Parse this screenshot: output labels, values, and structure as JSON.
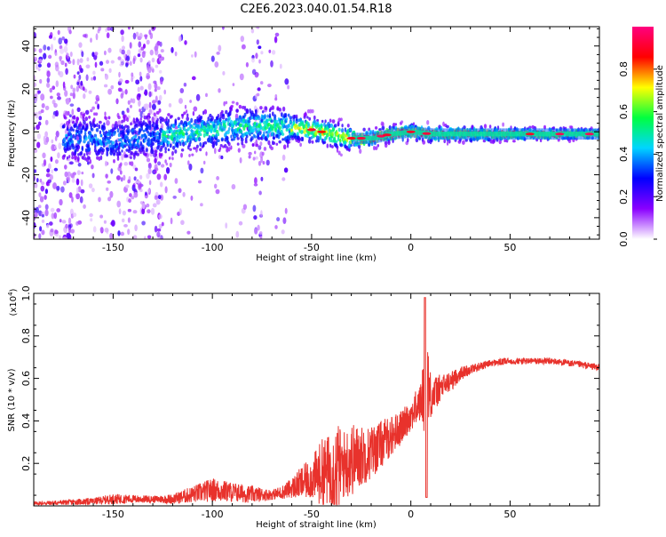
{
  "title": "C2E6.2023.040.01.54.R18",
  "colors": {
    "snr_line": "#e8322c",
    "axis": "#000000"
  },
  "chart_data": [
    {
      "type": "heatmap",
      "title": "C2E6.2023.040.01.54.R18",
      "xlabel": "Height of straight line (km)",
      "ylabel": "Frequency (Hz)",
      "xlim": [
        -190,
        95
      ],
      "ylim": [
        -50,
        49
      ],
      "xticks": [
        -150,
        -100,
        -50,
        0,
        50
      ],
      "yticks": [
        -40,
        -20,
        0,
        20,
        40
      ],
      "colorbar": {
        "label": "Normalized spectral amplitude",
        "range": [
          0,
          1
        ],
        "ticks": [
          "0.0",
          "0.2",
          "0.4",
          "0.6",
          "0.8"
        ],
        "tick_values": [
          0,
          0.2,
          0.4,
          0.6,
          0.8
        ],
        "colors": [
          "#ffffff",
          "#8a00ff",
          "#0000ff",
          "#00d5ff",
          "#00ff40",
          "#ffff00",
          "#ff0000",
          "#ff007f"
        ]
      },
      "ridge": {
        "x": [
          -170,
          -150,
          -125,
          -100,
          -80,
          -60,
          -50,
          -40,
          -30,
          -20,
          -10,
          0,
          10,
          20,
          40,
          60,
          95
        ],
        "y": [
          -3,
          -4,
          -2,
          1,
          3,
          2,
          1,
          -1,
          -3,
          -3,
          -1,
          0,
          -1,
          -1,
          -1,
          -1,
          -1
        ]
      }
    },
    {
      "type": "line",
      "xlabel": "Height of straight line (km)",
      "ylabel": "SNR (10 * v/v)",
      "scale_label": "(x10",
      "scale_exp": "4",
      "scale_close": ")",
      "xlim": [
        -190,
        95
      ],
      "ylim": [
        0,
        1.0
      ],
      "xticks": [
        -150,
        -100,
        -50,
        0,
        50
      ],
      "yticks": [
        "0.2",
        "0.4",
        "0.6",
        "0.8",
        "1.0"
      ],
      "ytick_values": [
        0.2,
        0.4,
        0.6,
        0.8,
        1.0
      ],
      "series": [
        {
          "values_envelope": {
            "x": [
              -190,
              -160,
              -150,
              -130,
              -120,
              -110,
              -100,
              -90,
              -80,
              -70,
              -65,
              -60,
              -55,
              -50,
              -45,
              -40,
              -37,
              -35,
              -30,
              -25,
              -20,
              -15,
              -10,
              -5,
              0,
              5,
              7,
              8,
              10,
              15,
              20,
              25,
              30,
              40,
              50,
              60,
              70,
              80,
              95
            ],
            "base": [
              0.01,
              0.02,
              0.03,
              0.03,
              0.03,
              0.05,
              0.07,
              0.06,
              0.05,
              0.05,
              0.06,
              0.08,
              0.1,
              0.12,
              0.14,
              0.15,
              0.15,
              0.17,
              0.2,
              0.22,
              0.24,
              0.28,
              0.32,
              0.36,
              0.42,
              0.48,
              0.52,
              0.55,
              0.5,
              0.55,
              0.58,
              0.62,
              0.64,
              0.67,
              0.68,
              0.68,
              0.68,
              0.67,
              0.65
            ],
            "amp": [
              0.01,
              0.02,
              0.03,
              0.02,
              0.03,
              0.05,
              0.07,
              0.06,
              0.05,
              0.03,
              0.04,
              0.06,
              0.1,
              0.12,
              0.2,
              0.22,
              0.3,
              0.2,
              0.22,
              0.18,
              0.16,
              0.14,
              0.12,
              0.1,
              0.09,
              0.12,
              0.25,
              0.45,
              0.12,
              0.08,
              0.06,
              0.04,
              0.03,
              0.02,
              0.02,
              0.02,
              0.02,
              0.02,
              0.02
            ]
          }
        }
      ]
    }
  ]
}
